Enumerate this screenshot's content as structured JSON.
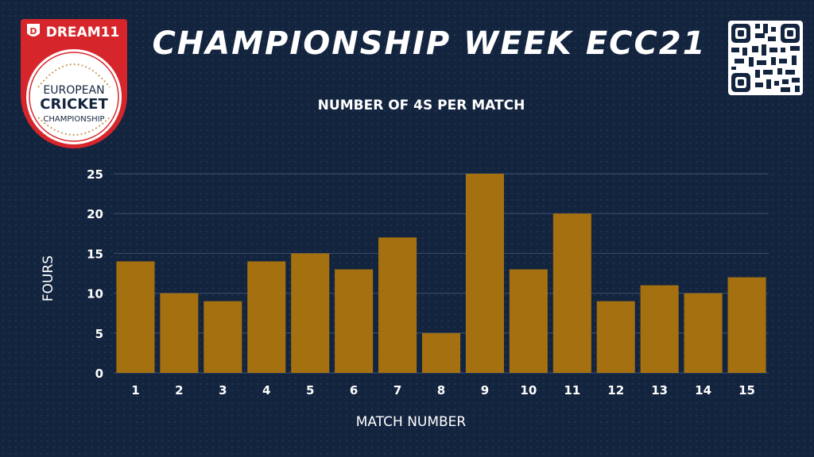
{
  "logo": {
    "brand": "DREAM11",
    "line1": "EUROPEAN",
    "line2": "CRICKET",
    "line3": "CHAMPIONSHIP"
  },
  "header": {
    "title": "CHAMPIONSHIP WEEK ECC21"
  },
  "colors": {
    "background": "#13243f",
    "bar": "#a5700f",
    "gridline": "#3c5070",
    "logo_red": "#d7262b",
    "logo_gold": "#c9a062"
  },
  "chart_data": {
    "type": "bar",
    "title": "NUMBER OF 4S PER MATCH",
    "xlabel": "MATCH NUMBER",
    "ylabel": "FOURS",
    "categories": [
      "1",
      "2",
      "3",
      "4",
      "5",
      "6",
      "7",
      "8",
      "9",
      "10",
      "11",
      "12",
      "13",
      "14",
      "15"
    ],
    "values": [
      14,
      10,
      9,
      14,
      15,
      13,
      17,
      5,
      25,
      13,
      20,
      9,
      11,
      10,
      12
    ],
    "ylim": [
      0,
      25
    ],
    "yticks": [
      "0",
      "5",
      "10",
      "15",
      "20",
      "25"
    ],
    "grid": true,
    "legend": "none"
  }
}
